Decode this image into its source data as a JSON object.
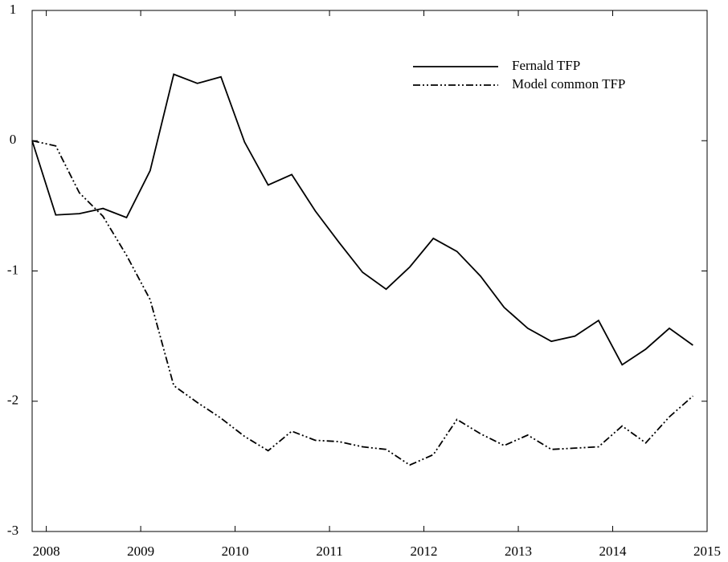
{
  "chart_data": {
    "type": "line",
    "x": [
      2007.85,
      2008.1,
      2008.35,
      2008.6,
      2008.85,
      2009.1,
      2009.35,
      2009.6,
      2009.85,
      2010.1,
      2010.35,
      2010.6,
      2010.85,
      2011.1,
      2011.35,
      2011.6,
      2011.85,
      2012.1,
      2012.35,
      2012.6,
      2012.85,
      2013.1,
      2013.35,
      2013.6,
      2013.85,
      2014.1,
      2014.35,
      2014.6,
      2014.85
    ],
    "series": [
      {
        "name": "Fernald TFP",
        "color": "#000000",
        "dash": "solid",
        "values": [
          0,
          -0.57,
          -0.56,
          -0.52,
          -0.59,
          -0.23,
          0.51,
          0.44,
          0.49,
          -0.01,
          -0.34,
          -0.26,
          -0.54,
          -0.78,
          -1.01,
          -1.14,
          -0.97,
          -0.75,
          -0.85,
          -1.04,
          -1.28,
          -1.44,
          -1.54,
          -1.5,
          -1.38,
          -1.72,
          -1.6,
          -1.44,
          -1.57
        ]
      },
      {
        "name": "Model common TFP",
        "color": "#000000",
        "dash": "dashdotdot",
        "values": [
          0,
          -0.04,
          -0.4,
          -0.58,
          -0.88,
          -1.22,
          -1.88,
          -2.01,
          -2.13,
          -2.27,
          -2.38,
          -2.23,
          -2.3,
          -2.31,
          -2.35,
          -2.37,
          -2.49,
          -2.41,
          -2.14,
          -2.25,
          -2.34,
          -2.26,
          -2.37,
          -2.36,
          -2.35,
          -2.19,
          -2.32,
          -2.12,
          -1.96
        ]
      }
    ],
    "xlim": [
      2007.85,
      2015.0
    ],
    "xticks": [
      2008,
      2009,
      2010,
      2011,
      2012,
      2013,
      2014,
      2015
    ],
    "ylim": [
      -3,
      1
    ],
    "yticks": [
      -3,
      -2,
      -1,
      0,
      1
    ],
    "legend": "upper right",
    "grid": false
  }
}
